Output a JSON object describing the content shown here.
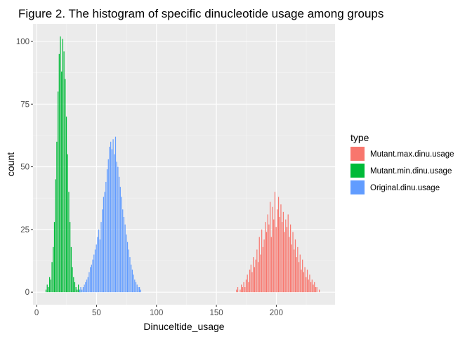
{
  "chart_data": {
    "type": "bar",
    "title": "Figure 2. The histogram of specific dinucleotide usage among groups",
    "xlabel": "Dinuceltide_usage",
    "ylabel": "count",
    "xlim": [
      -3,
      249
    ],
    "ylim": [
      -5,
      107
    ],
    "x_ticks": [
      0,
      50,
      100,
      150,
      200
    ],
    "x_tick_labels": [
      "0",
      "50",
      "100",
      "150",
      "200"
    ],
    "y_ticks": [
      0,
      25,
      50,
      75,
      100
    ],
    "y_tick_labels": [
      "0",
      "25",
      "50",
      "75",
      "100"
    ],
    "grid": true,
    "legend_position": "right",
    "legend_title": "type",
    "bin_width": 1,
    "series": [
      {
        "name": "Mutant.max.dinu.usage",
        "color": "#F8766D",
        "x": [
          167,
          168,
          170,
          171,
          172,
          173,
          174,
          175,
          176,
          177,
          178,
          179,
          180,
          181,
          182,
          183,
          184,
          185,
          186,
          187,
          188,
          189,
          190,
          191,
          192,
          193,
          194,
          195,
          196,
          197,
          198,
          199,
          200,
          201,
          202,
          203,
          204,
          205,
          206,
          207,
          208,
          209,
          210,
          211,
          212,
          213,
          214,
          215,
          216,
          217,
          218,
          219,
          220,
          221,
          222,
          223,
          224,
          225,
          226,
          227,
          228,
          229,
          230,
          231,
          232,
          233,
          234,
          236
        ],
        "values": [
          1,
          2,
          1,
          3,
          2,
          4,
          2,
          5,
          7,
          4,
          9,
          11,
          8,
          14,
          10,
          13,
          17,
          12,
          22,
          15,
          25,
          18,
          21,
          28,
          24,
          31,
          27,
          36,
          22,
          34,
          29,
          40,
          26,
          33,
          38,
          30,
          35,
          28,
          32,
          24,
          29,
          26,
          31,
          22,
          27,
          19,
          24,
          17,
          21,
          14,
          18,
          12,
          15,
          9,
          13,
          8,
          10,
          6,
          9,
          5,
          7,
          4,
          5,
          3,
          4,
          2,
          2,
          1
        ]
      },
      {
        "name": "Mutant.min.dinu.usage",
        "color": "#00BA38",
        "x": [
          8,
          9,
          10,
          11,
          12,
          13,
          14,
          15,
          16,
          17,
          18,
          19,
          20,
          21,
          22,
          23,
          24,
          25,
          26,
          27,
          28,
          29,
          30,
          31,
          32,
          33,
          34,
          35,
          36,
          37
        ],
        "values": [
          1,
          3,
          2,
          6,
          5,
          12,
          18,
          28,
          45,
          60,
          80,
          95,
          102,
          88,
          101,
          96,
          85,
          70,
          55,
          40,
          28,
          18,
          10,
          6,
          4,
          2,
          1,
          3,
          1,
          1
        ]
      },
      {
        "name": "Original.dinu.usage",
        "color": "#619CFF",
        "x": [
          36,
          37,
          38,
          39,
          40,
          41,
          42,
          43,
          44,
          45,
          46,
          47,
          48,
          49,
          50,
          51,
          52,
          53,
          54,
          55,
          56,
          57,
          58,
          59,
          60,
          61,
          62,
          63,
          64,
          65,
          66,
          67,
          68,
          69,
          70,
          71,
          72,
          73,
          74,
          75,
          76,
          77,
          78,
          79,
          80,
          81,
          82,
          83,
          84,
          85,
          86,
          87
        ],
        "values": [
          1,
          2,
          1,
          2,
          3,
          4,
          5,
          6,
          8,
          10,
          11,
          13,
          15,
          17,
          19,
          22,
          25,
          21,
          28,
          33,
          38,
          40,
          44,
          49,
          53,
          58,
          60,
          57,
          61,
          55,
          62,
          52,
          50,
          46,
          42,
          38,
          33,
          30,
          27,
          23,
          20,
          17,
          14,
          11,
          9,
          7,
          5,
          4,
          3,
          2,
          2,
          1
        ]
      }
    ]
  }
}
